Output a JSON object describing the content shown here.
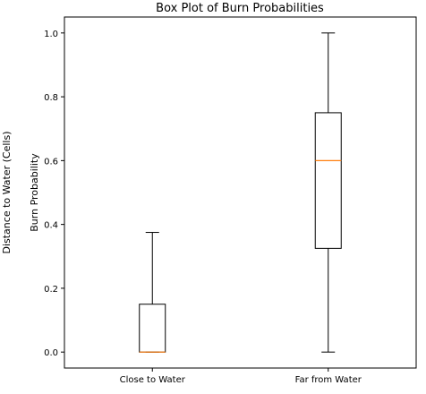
{
  "chart_data": {
    "type": "box",
    "title": "Box Plot of Burn Probabilities",
    "xlabel": "",
    "ylabel": "Burn Probability",
    "outer_ylabel": "Distance to Water (Cells)",
    "ylim": [
      -0.05,
      1.05
    ],
    "yticks": [
      0.0,
      0.2,
      0.4,
      0.6,
      0.8,
      1.0
    ],
    "ytick_labels": [
      "0.0",
      "0.2",
      "0.4",
      "0.6",
      "0.8",
      "1.0"
    ],
    "categories": [
      "Close to Water",
      "Far from Water"
    ],
    "boxes": [
      {
        "category": "Close to Water",
        "whisker_low": 0.0,
        "q1": 0.0,
        "median": 0.0,
        "q3": 0.15,
        "whisker_high": 0.375
      },
      {
        "category": "Far from Water",
        "whisker_low": 0.0,
        "q1": 0.325,
        "median": 0.6,
        "q3": 0.75,
        "whisker_high": 1.0
      }
    ],
    "grid": false,
    "colors": {
      "box": "#000000",
      "median": "#ff7f0e"
    }
  }
}
